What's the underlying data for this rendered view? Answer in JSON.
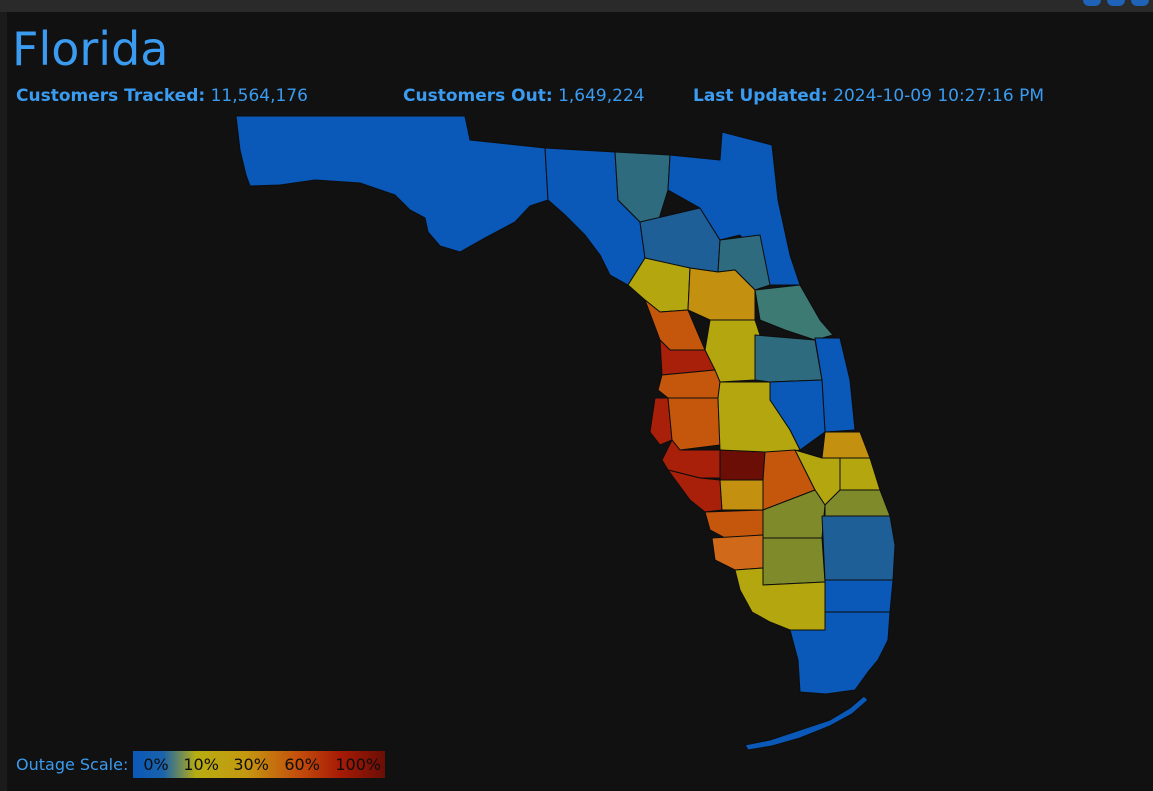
{
  "title": "Florida",
  "stats": {
    "tracked_label": "Customers Tracked:",
    "tracked_value": "11,564,176",
    "out_label": "Customers Out:",
    "out_value": "1,649,224",
    "updated_label": "Last Updated:",
    "updated_value": "2024-10-09 10:27:16 PM"
  },
  "legend": {
    "label": "Outage Scale:",
    "ticks": [
      "0%",
      "10%",
      "30%",
      "60%",
      "100%"
    ]
  },
  "colors": {
    "accent": "#3a9bf0",
    "background": "#111111",
    "scale_0": "#0a58b8",
    "scale_low": "#1f5f97",
    "scale_teal": "#2e6b7e",
    "scale_10": "#b3a60f",
    "scale_20": "#c4900f",
    "scale_30": "#c4570c",
    "scale_60": "#a8200a",
    "scale_100": "#6a0e06",
    "scale_olive": "#7f8a2a"
  }
}
